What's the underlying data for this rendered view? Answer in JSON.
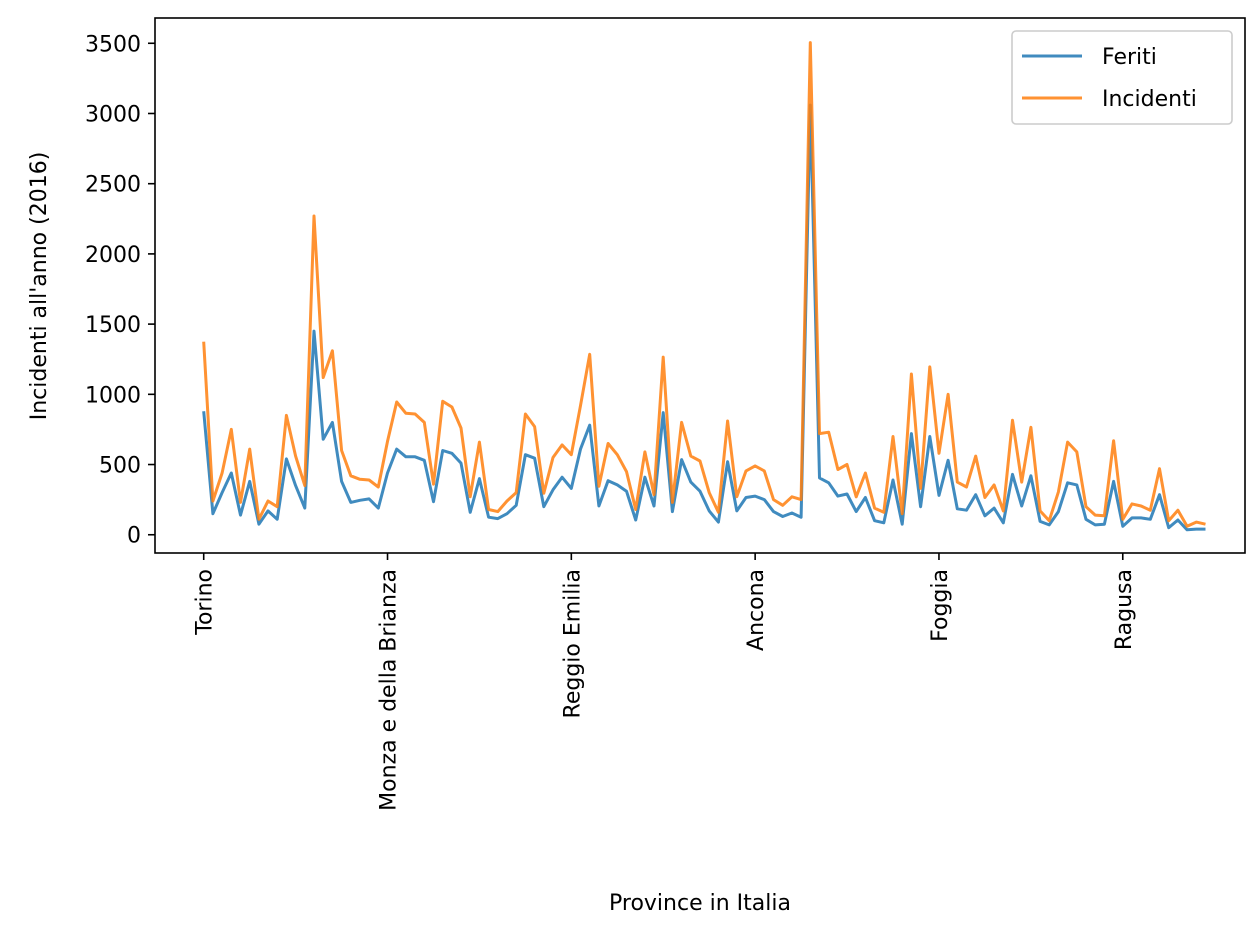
{
  "chart_data": {
    "type": "line",
    "xlabel": "Province in Italia",
    "ylabel": "Incidenti all'anno (2016)",
    "ylim": [
      -130,
      3680
    ],
    "xlim": [
      -5.3,
      113.3
    ],
    "y_ticks": [
      0,
      500,
      1000,
      1500,
      2000,
      2500,
      3000,
      3500
    ],
    "x_ticks": [
      {
        "index": 0,
        "label": "Torino"
      },
      {
        "index": 20,
        "label": "Monza e della Brianza"
      },
      {
        "index": 40,
        "label": "Reggio Emilia"
      },
      {
        "index": 60,
        "label": "Ancona"
      },
      {
        "index": 80,
        "label": "Foggia"
      },
      {
        "index": 100,
        "label": "Ragusa"
      }
    ],
    "legend_position": "top-right",
    "grid": false,
    "series": [
      {
        "name": "Feriti",
        "color": "#1f77b4",
        "values": [
          880,
          150,
          300,
          440,
          140,
          380,
          75,
          170,
          110,
          540,
          350,
          190,
          1450,
          680,
          800,
          380,
          230,
          245,
          255,
          190,
          440,
          610,
          555,
          555,
          530,
          235,
          600,
          580,
          510,
          160,
          400,
          125,
          115,
          150,
          210,
          570,
          545,
          200,
          320,
          410,
          330,
          610,
          780,
          205,
          385,
          355,
          310,
          105,
          410,
          205,
          870,
          165,
          535,
          375,
          310,
          170,
          90,
          520,
          170,
          265,
          275,
          250,
          165,
          130,
          155,
          125,
          3060,
          405,
          370,
          275,
          290,
          165,
          265,
          100,
          85,
          390,
          75,
          720,
          200,
          700,
          280,
          530,
          185,
          175,
          285,
          135,
          190,
          85,
          430,
          205,
          420,
          95,
          70,
          165,
          370,
          355,
          110,
          70,
          75,
          380,
          60,
          120,
          120,
          110,
          285,
          50,
          105,
          35,
          40,
          40
        ],
        "line_width": 3
      },
      {
        "name": "Incidenti",
        "color": "#ff7f0e",
        "values": [
          1375,
          240,
          440,
          750,
          230,
          610,
          110,
          240,
          200,
          850,
          560,
          350,
          2270,
          1120,
          1310,
          600,
          420,
          395,
          390,
          340,
          665,
          945,
          865,
          860,
          800,
          360,
          950,
          910,
          760,
          270,
          660,
          180,
          165,
          240,
          300,
          860,
          770,
          295,
          550,
          640,
          570,
          920,
          1285,
          345,
          650,
          570,
          450,
          180,
          590,
          285,
          1265,
          230,
          800,
          560,
          525,
          300,
          160,
          810,
          270,
          455,
          490,
          455,
          250,
          210,
          270,
          250,
          3505,
          720,
          730,
          465,
          500,
          270,
          440,
          190,
          160,
          700,
          150,
          1145,
          330,
          1195,
          580,
          1000,
          375,
          340,
          560,
          265,
          355,
          170,
          815,
          375,
          765,
          170,
          100,
          305,
          660,
          590,
          200,
          140,
          135,
          670,
          110,
          220,
          205,
          175,
          470,
          100,
          175,
          60,
          90,
          75
        ],
        "line_width": 3
      }
    ]
  }
}
